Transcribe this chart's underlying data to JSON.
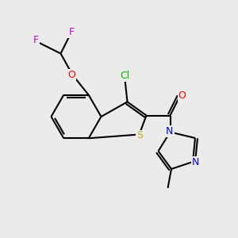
{
  "bg_color": "#ebebeb",
  "bond_color": "#000000",
  "atom_colors": {
    "S": "#ccaa00",
    "O": "#ff0000",
    "N": "#0000ff",
    "Cl": "#00bb00",
    "F": "#cc00cc",
    "C": "#000000"
  },
  "figsize": [
    3.0,
    3.0
  ],
  "dpi": 100
}
